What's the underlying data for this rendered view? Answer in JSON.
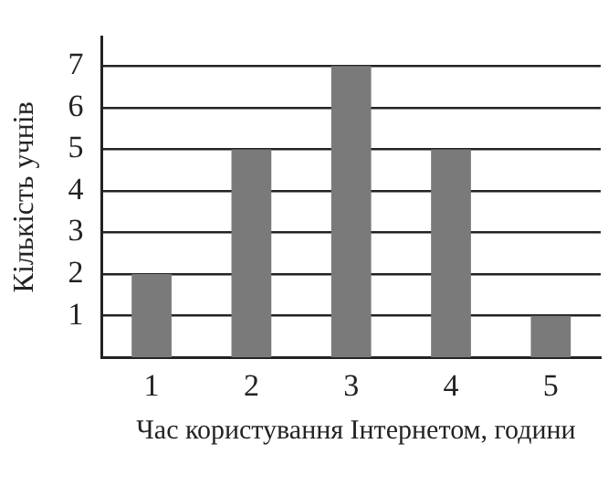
{
  "chart_data": {
    "type": "bar",
    "categories": [
      "1",
      "2",
      "3",
      "4",
      "5"
    ],
    "values": [
      2,
      5,
      7,
      5,
      1
    ],
    "color": "#7a7a7a",
    "ylim": [
      0,
      7.7
    ],
    "yticks": [
      1,
      2,
      3,
      4,
      5,
      6,
      7
    ],
    "grid": "y",
    "xlabel": "Час користування Інтернетом, години",
    "ylabel": "Кількість учнів"
  }
}
